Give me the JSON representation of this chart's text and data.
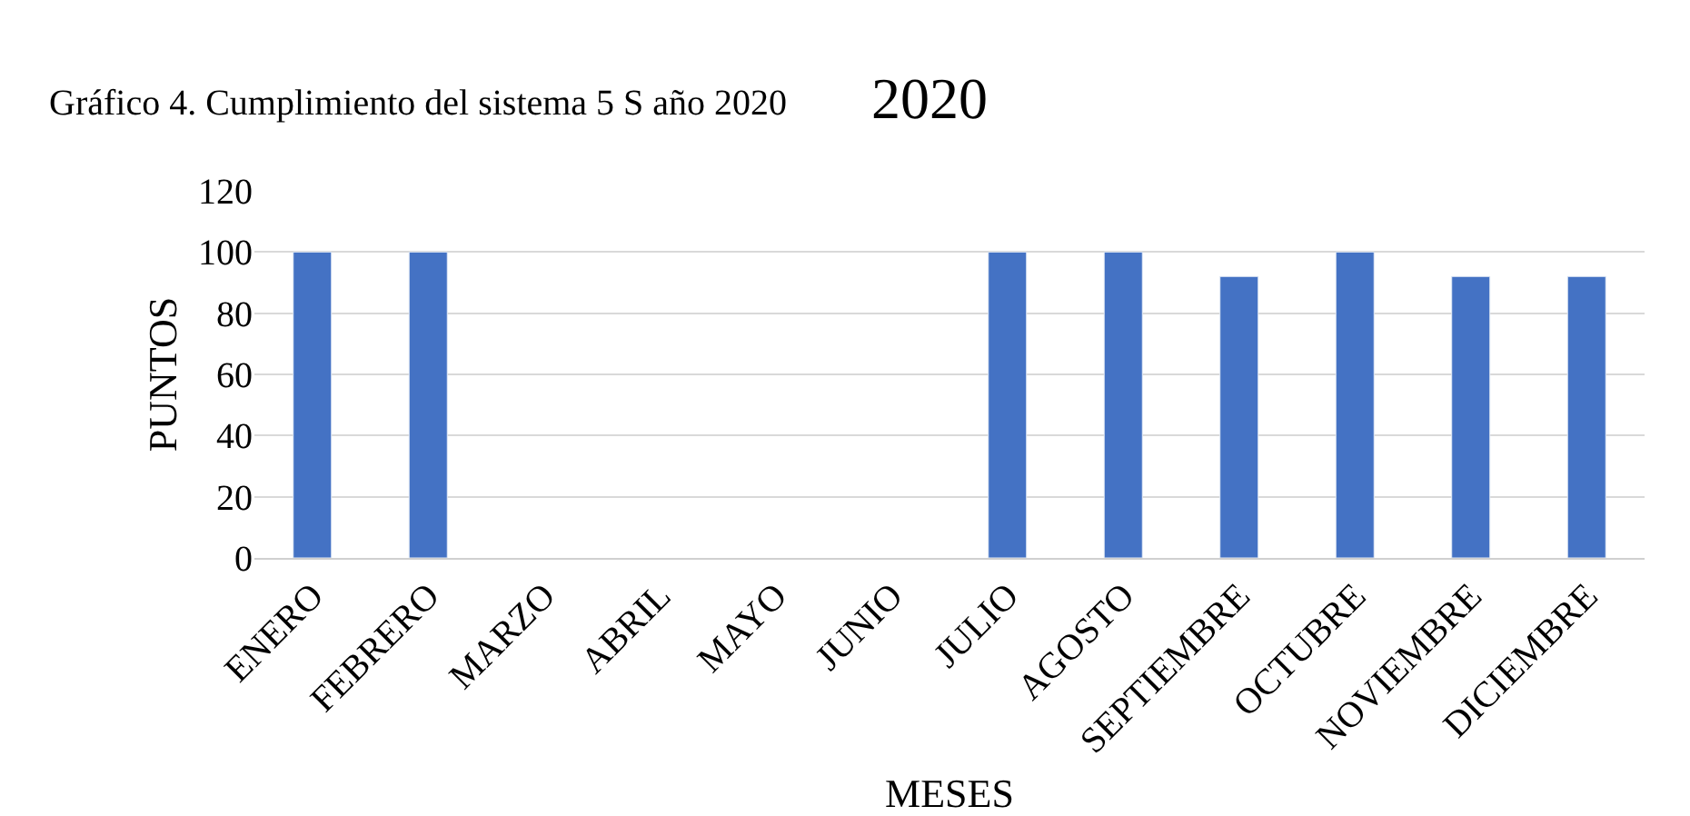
{
  "chart_data": {
    "type": "bar",
    "title": "2020",
    "subtitle": "Gráfico 4. Cumplimiento del sistema 5 S año 2020",
    "xlabel": "MESES",
    "ylabel": "PUNTOS",
    "categories": [
      "ENERO",
      "FEBRERO",
      "MARZO",
      "ABRIL",
      "MAYO",
      "JUNIO",
      "JULIO",
      "AGOSTO",
      "SEPTIEMBRE",
      "OCTUBRE",
      "NOVIEMBRE",
      "DICIEMBRE"
    ],
    "values": [
      100,
      100,
      null,
      null,
      null,
      null,
      100,
      100,
      92,
      100,
      92,
      92
    ],
    "color": "#4472c4",
    "ylim": [
      0,
      120
    ],
    "yticks": [
      0,
      20,
      40,
      60,
      80,
      100,
      120
    ],
    "grid": "y"
  }
}
